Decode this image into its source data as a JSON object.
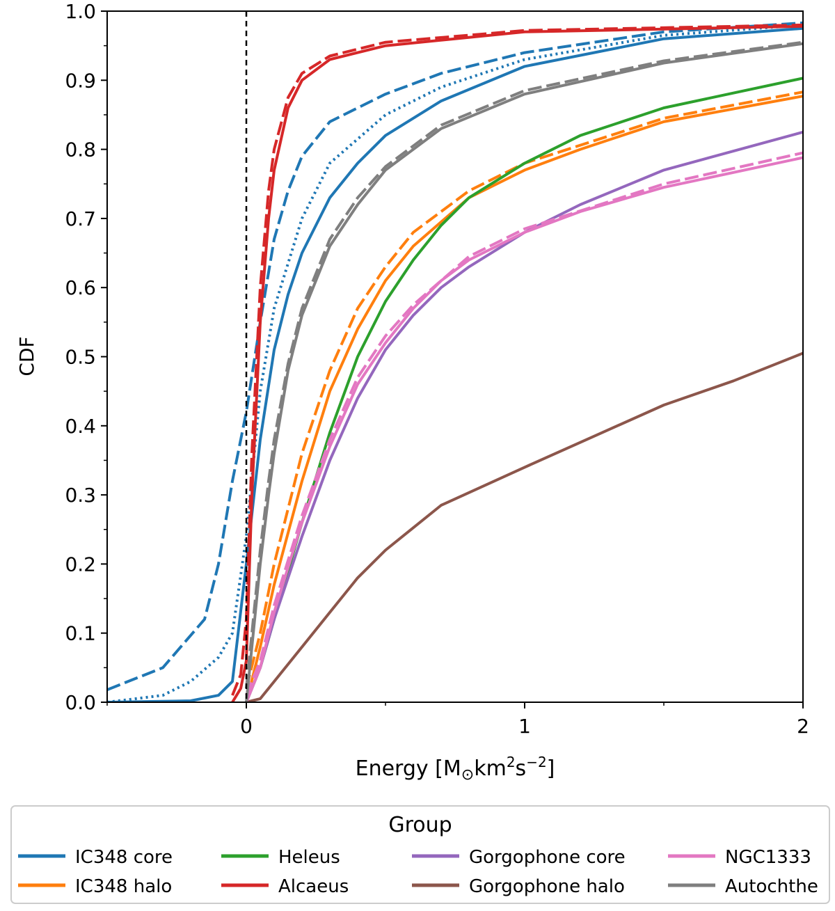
{
  "chart_data": {
    "type": "line",
    "xlabel": "Energy [M",
    "xlabel_sub": "⊙",
    "xlabel_rest": "km",
    "xlabel_sup": "2",
    "xlabel_rest2": "s",
    "xlabel_sup2": "−2",
    "xlabel_end": "]",
    "ylabel": "CDF",
    "xlim": [
      -0.5,
      2.0
    ],
    "ylim": [
      0.0,
      1.0
    ],
    "x_ticks": [
      0,
      1,
      2
    ],
    "x_tick_labels": [
      "0",
      "1",
      "2"
    ],
    "y_ticks": [
      0.0,
      0.1,
      0.2,
      0.3,
      0.4,
      0.5,
      0.6,
      0.7,
      0.8,
      0.9,
      1.0
    ],
    "y_tick_labels": [
      "0.0",
      "0.1",
      "0.2",
      "0.3",
      "0.4",
      "0.5",
      "0.6",
      "0.7",
      "0.8",
      "0.9",
      "1.0"
    ],
    "vline_x": 0,
    "grid": false,
    "legend": {
      "title": "Group",
      "placement": "bottom",
      "columns": 4,
      "entries": [
        "IC348 core",
        "IC348 halo",
        "Heleus",
        "Alcaeus",
        "Gorgophone core",
        "Gorgophone halo",
        "NGC1333",
        "Autochthe"
      ]
    },
    "series": [
      {
        "name": "IC348 core",
        "color": "#1f77b4",
        "variants": [
          {
            "style": "solid",
            "points": [
              [
                -0.5,
                0.0
              ],
              [
                -0.2,
                0.002
              ],
              [
                -0.1,
                0.01
              ],
              [
                -0.05,
                0.03
              ],
              [
                0,
                0.2
              ],
              [
                0.05,
                0.38
              ],
              [
                0.1,
                0.51
              ],
              [
                0.15,
                0.59
              ],
              [
                0.2,
                0.65
              ],
              [
                0.3,
                0.73
              ],
              [
                0.4,
                0.78
              ],
              [
                0.5,
                0.82
              ],
              [
                0.7,
                0.87
              ],
              [
                1.0,
                0.92
              ],
              [
                1.5,
                0.96
              ],
              [
                2.0,
                0.975
              ]
            ]
          },
          {
            "style": "dashed",
            "points": [
              [
                -0.5,
                0.018
              ],
              [
                -0.3,
                0.05
              ],
              [
                -0.15,
                0.12
              ],
              [
                -0.1,
                0.2
              ],
              [
                -0.05,
                0.32
              ],
              [
                0,
                0.42
              ],
              [
                0.05,
                0.55
              ],
              [
                0.1,
                0.67
              ],
              [
                0.15,
                0.74
              ],
              [
                0.2,
                0.79
              ],
              [
                0.3,
                0.84
              ],
              [
                0.5,
                0.88
              ],
              [
                0.7,
                0.91
              ],
              [
                1.0,
                0.94
              ],
              [
                1.5,
                0.97
              ],
              [
                2.0,
                0.983
              ]
            ]
          },
          {
            "style": "dotted",
            "points": [
              [
                -0.5,
                0.0
              ],
              [
                -0.3,
                0.01
              ],
              [
                -0.2,
                0.03
              ],
              [
                -0.1,
                0.065
              ],
              [
                -0.05,
                0.1
              ],
              [
                0,
                0.24
              ],
              [
                0.05,
                0.45
              ],
              [
                0.1,
                0.57
              ],
              [
                0.2,
                0.7
              ],
              [
                0.3,
                0.78
              ],
              [
                0.5,
                0.85
              ],
              [
                0.7,
                0.89
              ],
              [
                1.0,
                0.93
              ],
              [
                1.5,
                0.965
              ],
              [
                2.0,
                0.98
              ]
            ]
          }
        ]
      },
      {
        "name": "IC348 halo",
        "color": "#ff7f0e",
        "variants": [
          {
            "style": "solid",
            "points": [
              [
                0,
                0.0
              ],
              [
                0.05,
                0.08
              ],
              [
                0.1,
                0.17
              ],
              [
                0.2,
                0.32
              ],
              [
                0.3,
                0.45
              ],
              [
                0.4,
                0.54
              ],
              [
                0.5,
                0.61
              ],
              [
                0.6,
                0.66
              ],
              [
                0.8,
                0.73
              ],
              [
                1.0,
                0.77
              ],
              [
                1.2,
                0.8
              ],
              [
                1.5,
                0.84
              ],
              [
                2.0,
                0.877
              ]
            ]
          },
          {
            "style": "dashed",
            "points": [
              [
                0,
                0.02
              ],
              [
                0.05,
                0.1
              ],
              [
                0.1,
                0.2
              ],
              [
                0.2,
                0.36
              ],
              [
                0.3,
                0.48
              ],
              [
                0.4,
                0.57
              ],
              [
                0.5,
                0.63
              ],
              [
                0.6,
                0.68
              ],
              [
                0.8,
                0.74
              ],
              [
                1.0,
                0.78
              ],
              [
                1.5,
                0.845
              ],
              [
                2.0,
                0.883
              ]
            ]
          }
        ]
      },
      {
        "name": "Heleus",
        "color": "#2ca02c",
        "variants": [
          {
            "style": "solid",
            "points": [
              [
                0,
                0.0
              ],
              [
                0.05,
                0.05
              ],
              [
                0.1,
                0.12
              ],
              [
                0.2,
                0.26
              ],
              [
                0.3,
                0.39
              ],
              [
                0.4,
                0.5
              ],
              [
                0.5,
                0.58
              ],
              [
                0.6,
                0.64
              ],
              [
                0.7,
                0.69
              ],
              [
                0.8,
                0.73
              ],
              [
                1.0,
                0.78
              ],
              [
                1.2,
                0.82
              ],
              [
                1.5,
                0.86
              ],
              [
                2.0,
                0.903
              ]
            ]
          }
        ]
      },
      {
        "name": "Alcaeus",
        "color": "#d62728",
        "variants": [
          {
            "style": "solid",
            "points": [
              [
                -0.05,
                0.0
              ],
              [
                -0.02,
                0.02
              ],
              [
                0,
                0.06
              ],
              [
                0.02,
                0.3
              ],
              [
                0.05,
                0.55
              ],
              [
                0.08,
                0.7
              ],
              [
                0.1,
                0.77
              ],
              [
                0.15,
                0.86
              ],
              [
                0.2,
                0.9
              ],
              [
                0.3,
                0.93
              ],
              [
                0.5,
                0.95
              ],
              [
                1.0,
                0.97
              ],
              [
                2.0,
                0.978
              ]
            ]
          },
          {
            "style": "dashed",
            "points": [
              [
                -0.05,
                0.01
              ],
              [
                -0.02,
                0.04
              ],
              [
                0,
                0.12
              ],
              [
                0.02,
                0.36
              ],
              [
                0.05,
                0.6
              ],
              [
                0.08,
                0.74
              ],
              [
                0.1,
                0.8
              ],
              [
                0.15,
                0.875
              ],
              [
                0.2,
                0.91
              ],
              [
                0.3,
                0.935
              ],
              [
                0.5,
                0.955
              ],
              [
                1.0,
                0.972
              ],
              [
                2.0,
                0.98
              ]
            ]
          }
        ]
      },
      {
        "name": "Gorgophone core",
        "color": "#9467bd",
        "variants": [
          {
            "style": "solid",
            "points": [
              [
                0,
                0.0
              ],
              [
                0.05,
                0.05
              ],
              [
                0.1,
                0.12
              ],
              [
                0.2,
                0.24
              ],
              [
                0.3,
                0.35
              ],
              [
                0.4,
                0.44
              ],
              [
                0.5,
                0.51
              ],
              [
                0.6,
                0.56
              ],
              [
                0.7,
                0.6
              ],
              [
                0.8,
                0.63
              ],
              [
                1.0,
                0.68
              ],
              [
                1.2,
                0.72
              ],
              [
                1.5,
                0.77
              ],
              [
                2.0,
                0.825
              ]
            ]
          }
        ]
      },
      {
        "name": "Gorgophone halo",
        "color": "#8c564b",
        "variants": [
          {
            "style": "solid",
            "points": [
              [
                0,
                0.0
              ],
              [
                0.05,
                0.005
              ],
              [
                0.1,
                0.03
              ],
              [
                0.2,
                0.08
              ],
              [
                0.3,
                0.13
              ],
              [
                0.4,
                0.18
              ],
              [
                0.5,
                0.22
              ],
              [
                0.7,
                0.285
              ],
              [
                1.0,
                0.34
              ],
              [
                1.25,
                0.385
              ],
              [
                1.5,
                0.43
              ],
              [
                1.75,
                0.465
              ],
              [
                2.0,
                0.505
              ]
            ]
          }
        ]
      },
      {
        "name": "NGC1333",
        "color": "#e377c2",
        "variants": [
          {
            "style": "solid",
            "points": [
              [
                0,
                0.0
              ],
              [
                0.05,
                0.05
              ],
              [
                0.1,
                0.13
              ],
              [
                0.2,
                0.26
              ],
              [
                0.3,
                0.37
              ],
              [
                0.4,
                0.46
              ],
              [
                0.5,
                0.52
              ],
              [
                0.6,
                0.57
              ],
              [
                0.7,
                0.61
              ],
              [
                0.8,
                0.64
              ],
              [
                1.0,
                0.68
              ],
              [
                1.2,
                0.71
              ],
              [
                1.5,
                0.745
              ],
              [
                2.0,
                0.788
              ]
            ]
          },
          {
            "style": "dashed",
            "points": [
              [
                0,
                0.01
              ],
              [
                0.05,
                0.06
              ],
              [
                0.1,
                0.14
              ],
              [
                0.2,
                0.27
              ],
              [
                0.3,
                0.38
              ],
              [
                0.4,
                0.47
              ],
              [
                0.5,
                0.53
              ],
              [
                0.6,
                0.575
              ],
              [
                0.8,
                0.645
              ],
              [
                1.0,
                0.685
              ],
              [
                1.5,
                0.75
              ],
              [
                2.0,
                0.795
              ]
            ]
          }
        ]
      },
      {
        "name": "Autochthe",
        "color": "#7f7f7f",
        "variants": [
          {
            "style": "solid",
            "points": [
              [
                0,
                0.0
              ],
              [
                0.02,
                0.08
              ],
              [
                0.05,
                0.2
              ],
              [
                0.08,
                0.3
              ],
              [
                0.1,
                0.36
              ],
              [
                0.15,
                0.48
              ],
              [
                0.2,
                0.56
              ],
              [
                0.3,
                0.66
              ],
              [
                0.4,
                0.72
              ],
              [
                0.5,
                0.77
              ],
              [
                0.7,
                0.83
              ],
              [
                1.0,
                0.88
              ],
              [
                1.5,
                0.925
              ],
              [
                2.0,
                0.953
              ]
            ]
          },
          {
            "style": "dashed",
            "points": [
              [
                0,
                0.02
              ],
              [
                0.02,
                0.1
              ],
              [
                0.05,
                0.22
              ],
              [
                0.08,
                0.32
              ],
              [
                0.1,
                0.38
              ],
              [
                0.15,
                0.49
              ],
              [
                0.2,
                0.57
              ],
              [
                0.3,
                0.67
              ],
              [
                0.4,
                0.73
              ],
              [
                0.5,
                0.775
              ],
              [
                0.7,
                0.835
              ],
              [
                1.0,
                0.885
              ],
              [
                1.5,
                0.928
              ],
              [
                2.0,
                0.955
              ]
            ]
          }
        ]
      }
    ]
  }
}
